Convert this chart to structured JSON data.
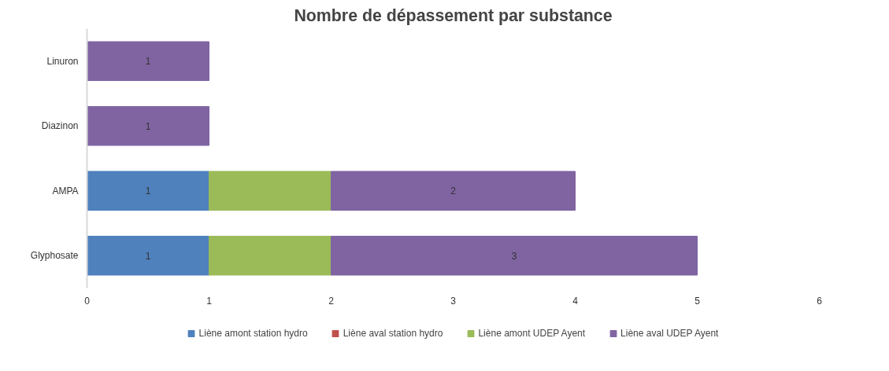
{
  "chart_data": {
    "type": "bar",
    "orientation": "horizontal",
    "stacked": true,
    "title": "Nombre de dépassement par substance",
    "categories": [
      "Linuron",
      "Diazinon",
      "AMPA",
      "Glyphosate"
    ],
    "series": [
      {
        "name": "Liène amont station hydro",
        "color": "#4f81bd",
        "values": [
          null,
          null,
          1,
          1
        ],
        "value_labels": [
          null,
          null,
          "1",
          "1"
        ]
      },
      {
        "name": "Liène aval station hydro",
        "color": "#c0504d",
        "values": [
          null,
          null,
          null,
          null
        ]
      },
      {
        "name": "Liène amont UDEP Ayent",
        "color": "#9bbb59",
        "values": [
          null,
          null,
          1,
          1
        ],
        "value_labels": [
          null,
          null,
          null,
          null
        ]
      },
      {
        "name": "Liène aval UDEP Ayent",
        "color": "#8064a2",
        "values": [
          1,
          1,
          2,
          3
        ],
        "value_labels": [
          "1",
          "1",
          "2",
          "3"
        ]
      }
    ],
    "xlim": [
      0,
      6
    ],
    "xticks": [
      0,
      1,
      2,
      3,
      4,
      5,
      6
    ],
    "grid": false,
    "legend": "bottom"
  }
}
